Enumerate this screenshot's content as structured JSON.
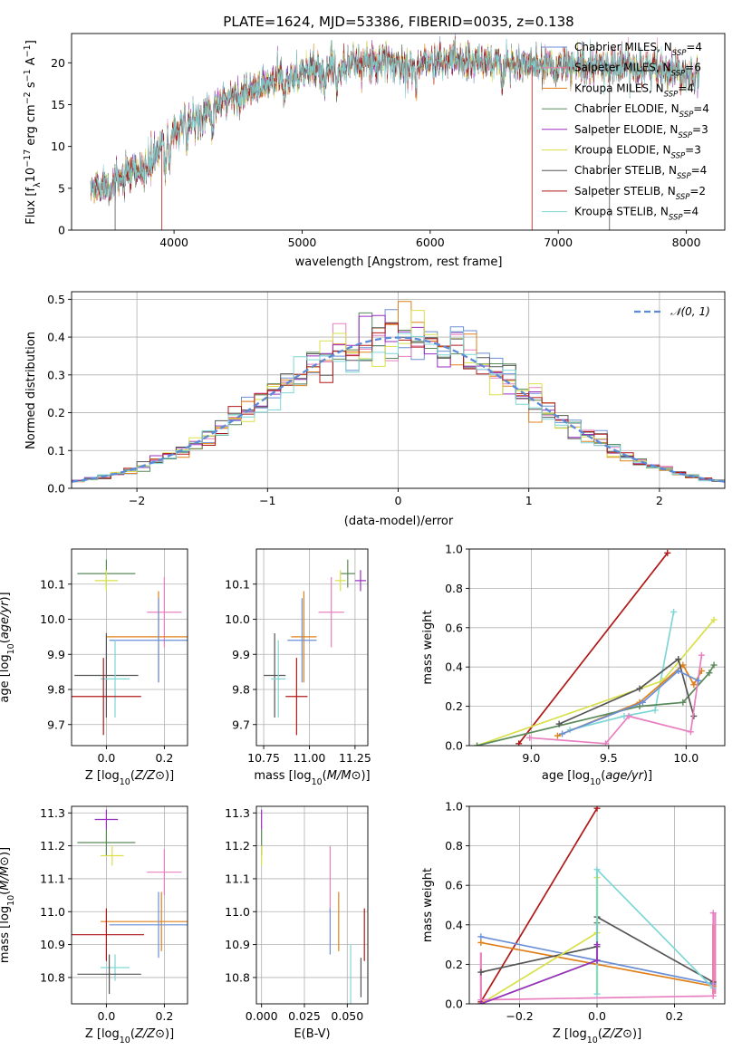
{
  "title": "PLATE=1624, MJD=53386, FIBERID=0035, z=0.138",
  "colors": {
    "Chabrier MILES": "#6a8fd6",
    "Salpeter MILES": "#e87fc0",
    "Kroupa MILES": "#e0801a",
    "Chabrier ELODIE": "#5a8a5a",
    "Salpeter ELODIE": "#9b2fc0",
    "Kroupa ELODIE": "#d9e04a",
    "Chabrier STELIB": "#555555",
    "Salpeter STELIB": "#b01818",
    "Kroupa STELIB": "#7fd6d6",
    "normal": "#5b8ad6"
  },
  "legend_spectrum": [
    {
      "model": "Chabrier MILES",
      "n": "4"
    },
    {
      "model": "Salpeter MILES",
      "n": "6"
    },
    {
      "model": "Kroupa MILES",
      "n": "4"
    },
    {
      "model": "Chabrier ELODIE",
      "n": "4"
    },
    {
      "model": "Salpeter ELODIE",
      "n": "3"
    },
    {
      "model": "Kroupa ELODIE",
      "n": "3"
    },
    {
      "model": "Chabrier STELIB",
      "n": "4"
    },
    {
      "model": "Salpeter STELIB",
      "n": "2"
    },
    {
      "model": "Kroupa STELIB",
      "n": "4"
    }
  ],
  "legend_hist": "𝒩(0, 1)",
  "chart_data": [
    {
      "id": "spectrum",
      "type": "line",
      "xlabel": "wavelength [Angstrom, rest frame]",
      "ylabel": "Flux [f_λ10^-17 erg cm^-2 s^-1 A^-1]",
      "xlim": [
        3200,
        8300
      ],
      "ylim": [
        0,
        23.5
      ],
      "xticks": [
        4000,
        5000,
        6000,
        7000,
        8000
      ],
      "yticks": [
        0,
        5,
        10,
        15,
        20
      ],
      "x_range": [
        3350,
        8100
      ],
      "continuum": [
        [
          3350,
          5
        ],
        [
          3500,
          5.5
        ],
        [
          3650,
          6.5
        ],
        [
          3800,
          7.5
        ],
        [
          3900,
          10
        ],
        [
          4000,
          12
        ],
        [
          4200,
          13.5
        ],
        [
          4400,
          15.5
        ],
        [
          4600,
          16.5
        ],
        [
          4800,
          18
        ],
        [
          5000,
          18.8
        ],
        [
          5200,
          19.5
        ],
        [
          5400,
          20
        ],
        [
          5600,
          20
        ],
        [
          5800,
          19.8
        ],
        [
          6000,
          20
        ],
        [
          6200,
          20.3
        ],
        [
          6400,
          20.2
        ],
        [
          6600,
          20
        ],
        [
          6800,
          19.7
        ],
        [
          7000,
          19.5
        ],
        [
          7200,
          19.5
        ],
        [
          7400,
          19.6
        ],
        [
          7600,
          19.5
        ],
        [
          7800,
          19.3
        ],
        [
          8000,
          19
        ],
        [
          8100,
          18.8
        ]
      ],
      "absorption_features": [
        3934,
        3968,
        4102,
        4300,
        4861,
        5175,
        5270,
        5890,
        6563
      ]
    },
    {
      "id": "residuals",
      "type": "histogram",
      "xlabel": "(data-model)/error",
      "ylabel": "Normed distribution",
      "xlim": [
        -2.5,
        2.5
      ],
      "ylim": [
        0,
        0.52
      ],
      "xticks": [
        -2,
        -1,
        0,
        1,
        2
      ],
      "yticks": [
        0.0,
        0.1,
        0.2,
        0.3,
        0.4,
        0.5
      ],
      "bin_width": 0.1
    },
    {
      "id": "age_vs_Z",
      "type": "scatter",
      "xlabel": "Z [log10(Z/Z⊙)]",
      "ylabel": "age  [log10(age/yr)]",
      "xlim": [
        -0.12,
        0.28
      ],
      "ylim": [
        9.64,
        10.2
      ],
      "xticks": [
        0.0,
        0.2
      ],
      "yticks": [
        9.7,
        9.8,
        9.9,
        10.0,
        10.1
      ],
      "points": [
        {
          "model": "Chabrier ELODIE",
          "x": 0.0,
          "y": 10.13,
          "ex": 0.1,
          "ey": 0.04
        },
        {
          "model": "Kroupa ELODIE",
          "x": 0.0,
          "y": 10.11,
          "ex": 0.04,
          "ey": 0.03
        },
        {
          "model": "Salpeter MILES",
          "x": 0.2,
          "y": 10.02,
          "ex": 0.06,
          "ey": 0.1
        },
        {
          "model": "Kroupa MILES",
          "x": 0.18,
          "y": 9.95,
          "ex": 0.18,
          "ey": 0.13
        },
        {
          "model": "Chabrier MILES",
          "x": 0.18,
          "y": 9.94,
          "ex": 0.17,
          "ey": 0.12
        },
        {
          "model": "Chabrier STELIB",
          "x": 0.0,
          "y": 9.84,
          "ex": 0.11,
          "ey": 0.12
        },
        {
          "model": "Kroupa STELIB",
          "x": 0.03,
          "y": 9.83,
          "ex": 0.05,
          "ey": 0.11
        },
        {
          "model": "Salpeter STELIB",
          "x": -0.01,
          "y": 9.78,
          "ex": 0.13,
          "ey": 0.11
        }
      ]
    },
    {
      "id": "age_vs_mass",
      "type": "scatter",
      "xlabel": "mass [log10(M/M⊙)]",
      "xlim": [
        10.71,
        11.32
      ],
      "ylim": [
        9.64,
        10.2
      ],
      "xticks": [
        10.75,
        11.0,
        11.25
      ],
      "yticks": [
        9.7,
        9.8,
        9.9,
        10.0,
        10.1
      ],
      "points": [
        {
          "model": "Chabrier ELODIE",
          "x": 11.21,
          "y": 10.13,
          "ex": 0.04,
          "ey": 0.04
        },
        {
          "model": "Salpeter ELODIE",
          "x": 11.28,
          "y": 10.11,
          "ex": 0.03,
          "ey": 0.03
        },
        {
          "model": "Kroupa ELODIE",
          "x": 11.17,
          "y": 10.11,
          "ex": 0.03,
          "ey": 0.03
        },
        {
          "model": "Salpeter MILES",
          "x": 11.12,
          "y": 10.02,
          "ex": 0.07,
          "ey": 0.1
        },
        {
          "model": "Kroupa MILES",
          "x": 10.97,
          "y": 9.95,
          "ex": 0.07,
          "ey": 0.13
        },
        {
          "model": "Chabrier MILES",
          "x": 10.96,
          "y": 9.94,
          "ex": 0.08,
          "ey": 0.12
        },
        {
          "model": "Chabrier STELIB",
          "x": 10.81,
          "y": 9.84,
          "ex": 0.06,
          "ey": 0.12
        },
        {
          "model": "Kroupa STELIB",
          "x": 10.83,
          "y": 9.83,
          "ex": 0.04,
          "ey": 0.11
        },
        {
          "model": "Salpeter STELIB",
          "x": 10.93,
          "y": 9.78,
          "ex": 0.06,
          "ey": 0.11
        }
      ]
    },
    {
      "id": "weight_vs_age",
      "type": "line",
      "xlabel": "age  [log10(age/yr)]",
      "ylabel": "mass weight",
      "xlim": [
        8.6,
        10.25
      ],
      "ylim": [
        0,
        1
      ],
      "xticks": [
        9.0,
        9.5,
        10.0
      ],
      "yticks": [
        0.0,
        0.2,
        0.4,
        0.6,
        0.8,
        1.0
      ],
      "series": [
        {
          "model": "Salpeter STELIB",
          "points": [
            [
              8.92,
              0.01
            ],
            [
              9.88,
              0.98
            ]
          ]
        },
        {
          "model": "Kroupa STELIB",
          "points": [
            [
              9.25,
              0.08
            ],
            [
              9.6,
              0.15
            ],
            [
              9.8,
              0.18
            ],
            [
              9.92,
              0.68
            ]
          ]
        },
        {
          "model": "Kroupa ELODIE",
          "points": [
            [
              8.65,
              0.0
            ],
            [
              9.85,
              0.33
            ],
            [
              10.18,
              0.64
            ]
          ]
        },
        {
          "model": "Kroupa MILES",
          "points": [
            [
              9.17,
              0.05
            ],
            [
              9.7,
              0.22
            ],
            [
              9.98,
              0.41
            ],
            [
              10.05,
              0.31
            ],
            [
              10.1,
              0.38
            ]
          ]
        },
        {
          "model": "Chabrier ELODIE",
          "points": [
            [
              8.65,
              0.0
            ],
            [
              9.7,
              0.2
            ],
            [
              9.98,
              0.22
            ],
            [
              10.15,
              0.37
            ],
            [
              10.18,
              0.41
            ]
          ]
        },
        {
          "model": "Chabrier STELIB",
          "points": [
            [
              9.18,
              0.11
            ],
            [
              9.7,
              0.29
            ],
            [
              9.95,
              0.44
            ],
            [
              10.05,
              0.15
            ]
          ]
        },
        {
          "model": "Salpeter MILES",
          "points": [
            [
              8.99,
              0.04
            ],
            [
              9.48,
              0.01
            ],
            [
              9.63,
              0.15
            ],
            [
              10.03,
              0.07
            ],
            [
              10.1,
              0.46
            ]
          ]
        },
        {
          "model": "Chabrier MILES",
          "points": [
            [
              9.2,
              0.06
            ],
            [
              9.72,
              0.22
            ],
            [
              9.95,
              0.38
            ],
            [
              10.08,
              0.33
            ]
          ]
        }
      ]
    },
    {
      "id": "mass_vs_Z",
      "type": "scatter",
      "xlabel": "Z [log10(Z/Z⊙)]",
      "ylabel": "mass [log10(M/M⊙)]",
      "xlim": [
        -0.12,
        0.28
      ],
      "ylim": [
        10.72,
        11.32
      ],
      "xticks": [
        0.0,
        0.2
      ],
      "yticks": [
        10.8,
        10.9,
        11.0,
        11.1,
        11.2,
        11.3
      ],
      "points": [
        {
          "model": "Salpeter ELODIE",
          "x": 0.0,
          "y": 11.28,
          "ex": 0.04,
          "ey": 0.03
        },
        {
          "model": "Chabrier ELODIE",
          "x": 0.0,
          "y": 11.21,
          "ex": 0.1,
          "ey": 0.04
        },
        {
          "model": "Kroupa ELODIE",
          "x": 0.02,
          "y": 11.17,
          "ex": 0.04,
          "ey": 0.03
        },
        {
          "model": "Salpeter MILES",
          "x": 0.2,
          "y": 11.12,
          "ex": 0.06,
          "ey": 0.07
        },
        {
          "model": "Kroupa MILES",
          "x": 0.19,
          "y": 10.97,
          "ex": 0.21,
          "ey": 0.09
        },
        {
          "model": "Chabrier MILES",
          "x": 0.18,
          "y": 10.96,
          "ex": 0.17,
          "ey": 0.1
        },
        {
          "model": "Salpeter STELIB",
          "x": 0.0,
          "y": 10.93,
          "ex": 0.13,
          "ey": 0.08
        },
        {
          "model": "Kroupa STELIB",
          "x": 0.03,
          "y": 10.83,
          "ex": 0.05,
          "ey": 0.04
        },
        {
          "model": "Chabrier STELIB",
          "x": 0.01,
          "y": 10.81,
          "ex": 0.11,
          "ey": 0.06
        }
      ]
    },
    {
      "id": "mass_vs_ebv",
      "type": "scatter",
      "xlabel": "E(B-V)",
      "xlim": [
        -0.003,
        0.062
      ],
      "ylim": [
        10.72,
        11.32
      ],
      "xticks": [
        0.0,
        0.025,
        0.05
      ],
      "yticks": [
        10.8,
        10.9,
        11.0,
        11.1,
        11.2,
        11.3
      ],
      "points": [
        {
          "model": "Salpeter ELODIE",
          "x": 0.0,
          "y": 11.28,
          "ex": 0.0,
          "ey": 0.03
        },
        {
          "model": "Chabrier ELODIE",
          "x": 0.0,
          "y": 11.21,
          "ex": 0.0,
          "ey": 0.04
        },
        {
          "model": "Kroupa ELODIE",
          "x": 0.0,
          "y": 11.17,
          "ex": 0.0,
          "ey": 0.03
        },
        {
          "model": "Salpeter MILES",
          "x": 0.04,
          "y": 11.1,
          "ex": 0.0,
          "ey": 0.1
        },
        {
          "model": "Kroupa MILES",
          "x": 0.045,
          "y": 10.97,
          "ex": 0.0,
          "ey": 0.09
        },
        {
          "model": "Chabrier MILES",
          "x": 0.04,
          "y": 10.94,
          "ex": 0.0,
          "ey": 0.07
        },
        {
          "model": "Salpeter STELIB",
          "x": 0.06,
          "y": 10.93,
          "ex": 0.0,
          "ey": 0.08
        },
        {
          "model": "Kroupa STELIB",
          "x": 0.052,
          "y": 10.8,
          "ex": 0.0,
          "ey": 0.1
        },
        {
          "model": "Chabrier STELIB",
          "x": 0.058,
          "y": 10.8,
          "ex": 0.0,
          "ey": 0.06
        }
      ]
    },
    {
      "id": "weight_vs_Z",
      "type": "line",
      "xlabel": "Z [log10(Z/Z⊙)]",
      "ylabel": "mass weight",
      "xlim": [
        -0.33,
        0.33
      ],
      "ylim": [
        0,
        1
      ],
      "xticks": [
        -0.2,
        0.0,
        0.2
      ],
      "yticks": [
        0.0,
        0.2,
        0.4,
        0.6,
        0.8,
        1.0
      ],
      "series": [
        {
          "model": "Salpeter STELIB",
          "points": [
            [
              -0.3,
              0.01
            ],
            [
              0.0,
              0.99
            ]
          ]
        },
        {
          "model": "Chabrier MILES",
          "points": [
            [
              -0.3,
              0.34
            ],
            [
              0.0,
              0.22
            ],
            [
              0.3,
              0.1
            ]
          ]
        },
        {
          "model": "Kroupa MILES",
          "points": [
            [
              -0.3,
              0.31
            ],
            [
              0.0,
              0.2
            ],
            [
              0.3,
              0.09
            ]
          ]
        },
        {
          "model": "Chabrier STELIB",
          "points": [
            [
              -0.3,
              0.16
            ],
            [
              0.0,
              0.29
            ],
            [
              0.0,
              0.44
            ],
            [
              0.3,
              0.11
            ]
          ]
        },
        {
          "model": "Kroupa ELODIE",
          "points": [
            [
              -0.3,
              0.0
            ],
            [
              0.0,
              0.36
            ],
            [
              0.0,
              0.64
            ]
          ]
        },
        {
          "model": "Chabrier ELODIE",
          "points": [
            [
              -0.3,
              0.0
            ],
            [
              0.0,
              0.22
            ],
            [
              0.0,
              0.41
            ]
          ]
        },
        {
          "model": "Kroupa STELIB",
          "points": [
            [
              0.0,
              0.05
            ],
            [
              0.0,
              0.68
            ],
            [
              0.3,
              0.08
            ]
          ]
        },
        {
          "model": "Salpeter MILES",
          "points": [
            [
              -0.3,
              0.02
            ],
            [
              0.3,
              0.04
            ],
            [
              0.3,
              0.46
            ]
          ]
        },
        {
          "model": "Salpeter ELODIE",
          "points": [
            [
              -0.3,
              0.0
            ],
            [
              0.0,
              0.22
            ],
            [
              0.0,
              0.3
            ]
          ]
        }
      ],
      "vertical_errorbars": [
        {
          "model": "Salpeter MILES",
          "x": -0.3,
          "y0": 0.0,
          "y1": 0.26
        },
        {
          "model": "Kroupa STELIB",
          "x": 0.0,
          "y0": 0.05,
          "y1": 0.68
        },
        {
          "model": "Kroupa ELODIE",
          "x": 0.0,
          "y0": 0.05,
          "y1": 0.64
        },
        {
          "model": "Kroupa MILES",
          "x": 0.3,
          "y0": 0.05,
          "y1": 0.4
        },
        {
          "model": "Salpeter MILES",
          "x": 0.305,
          "y0": 0.05,
          "y1": 0.46
        }
      ]
    }
  ]
}
